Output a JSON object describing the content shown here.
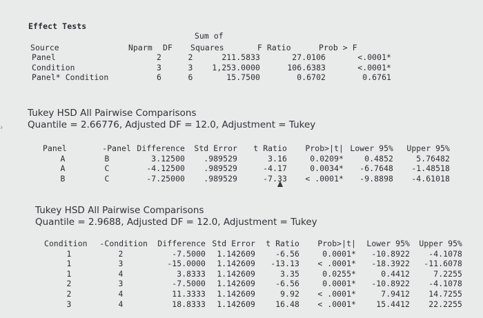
{
  "effect_tests": {
    "title": "Effect Tests",
    "header_line1": {
      "sum_of": "Sum of"
    },
    "header_line2": {
      "source": "Source",
      "nparm": "Nparm",
      "df": "DF",
      "squares": "Squares",
      "f_ratio": "F Ratio",
      "prob_f": "Prob > F"
    },
    "rows": [
      {
        "source": "Panel",
        "nparm": "2",
        "df": "2",
        "ss": "211.5833",
        "f": "27.0106",
        "p": "<.0001*"
      },
      {
        "source": "Condition",
        "nparm": "3",
        "df": "3",
        "ss": "1,253.0000",
        "f": "106.6383",
        "p": "<.0001*"
      },
      {
        "source": "Panel* Condition",
        "nparm": "6",
        "df": "6",
        "ss": "15.7500",
        "f": "0.6702",
        "p": "0.6761"
      }
    ]
  },
  "tukey1": {
    "heading_line1": "Tukey HSD All Pairwise Comparisons",
    "heading_line2": "Quantile = 2.66776, Adjusted DF = 12.0, Adjustment = Tukey",
    "columns": [
      "Panel",
      "-Panel",
      "Difference",
      "Std Error",
      "t Ratio",
      "Prob>|t|",
      "Lower 95%",
      "Upper 95%"
    ],
    "rows": [
      [
        "A",
        "B",
        "3.12500",
        ".989529",
        "3.16",
        "0.0209*",
        "0.4852",
        "5.76482"
      ],
      [
        "A",
        "C",
        "-4.12500",
        ".989529",
        "-4.17",
        "0.0034*",
        "-6.7648",
        "-1.48518"
      ],
      [
        "B",
        "C",
        "-7.25000",
        ".989529",
        "-7.33",
        "< .0001*",
        "-9.8898",
        "-4.61018"
      ]
    ]
  },
  "tukey2": {
    "heading_line1": "Tukey HSD All Pairwise Comparisons",
    "heading_line2": "Quantile = 2.9688, Adjusted DF = 12.0, Adjustment = Tukey",
    "columns": [
      "Condition",
      "-Condition",
      "Difference",
      "Std Error",
      "t Ratio",
      "Prob>|t|",
      "Lower 95%",
      "Upper 95%"
    ],
    "rows": [
      [
        "1",
        "2",
        "-7.5000",
        "1.142609",
        "-6.56",
        "0.0001*",
        "-10.8922",
        "-4.1078"
      ],
      [
        "1",
        "3",
        "-15.0000",
        "1.142609",
        "-13.13",
        "< .0001*",
        "-18.3922",
        "-11.6078"
      ],
      [
        "1",
        "4",
        "3.8333",
        "1.142609",
        "3.35",
        "0.0255*",
        "0.4412",
        "7.2255"
      ],
      [
        "2",
        "3",
        "-7.5000",
        "1.142609",
        "-6.56",
        "0.0001*",
        "-10.8922",
        "-4.1078"
      ],
      [
        "2",
        "4",
        "11.3333",
        "1.142609",
        "9.92",
        "< .0001*",
        "7.9412",
        "14.7255"
      ],
      [
        "3",
        "4",
        "18.8333",
        "1.142609",
        "16.48",
        "< .0001*",
        "15.4412",
        "22.2255"
      ]
    ]
  }
}
